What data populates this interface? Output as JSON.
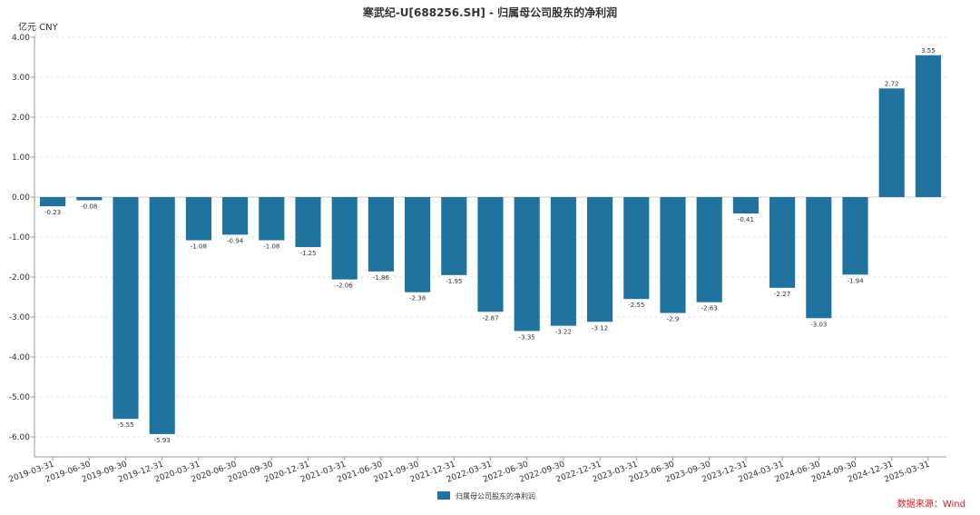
{
  "chart_data": {
    "type": "bar",
    "title": "寒武纪-U[688256.SH] - 归属母公司股东的净利润",
    "unit_label": "亿元  CNY",
    "categories": [
      "2019-03-31",
      "2019-06-30",
      "2019-09-30",
      "2019-12-31",
      "2020-03-31",
      "2020-06-30",
      "2020-09-30",
      "2020-12-31",
      "2021-03-31",
      "2021-06-30",
      "2021-09-30",
      "2021-12-31",
      "2022-03-31",
      "2022-06-30",
      "2022-09-30",
      "2022-12-31",
      "2023-03-31",
      "2023-06-30",
      "2023-09-30",
      "2023-12-31",
      "2024-03-31",
      "2024-06-30",
      "2024-09-30",
      "2024-12-31",
      "2025-03-31"
    ],
    "series": [
      {
        "name": "归属母公司股东的净利润",
        "color": "#21739f",
        "values": [
          -0.23,
          -0.08,
          -5.55,
          -5.93,
          -1.08,
          -0.94,
          -1.08,
          -1.25,
          -2.06,
          -1.86,
          -2.38,
          -1.95,
          -2.87,
          -3.35,
          -3.22,
          -3.12,
          -2.55,
          -2.9,
          -2.63,
          -0.41,
          -2.27,
          -3.03,
          -1.94,
          2.72,
          3.55
        ],
        "labels": [
          "-0.23",
          "-0.08",
          "-5.55",
          "-5.93",
          "-1.08",
          "-0.94",
          "-1.08",
          "-1.25",
          "-2.06",
          "-1.86",
          "-2.38",
          "-1.95",
          "-2.87",
          "-3.35",
          "-3.22",
          "-3.12",
          "-2.55",
          "-2.9",
          "-2.63",
          "-0.41",
          "-2.27",
          "-3.03",
          "-1.94",
          "2.72",
          "3.55"
        ]
      }
    ],
    "ylim": [
      -6.5,
      4
    ],
    "yticks": [
      4,
      3,
      2,
      1,
      0,
      -1,
      -2,
      -3,
      -4,
      -5,
      -6
    ],
    "ytick_labels": [
      "4.00",
      "3.00",
      "2.00",
      "1.00",
      "0.00",
      "-1.00",
      "-2.00",
      "-3.00",
      "-4.00",
      "-5.00",
      "-6.00"
    ],
    "grid": true,
    "legend_position": "bottom-center",
    "source_text": "数据来源：Wind"
  }
}
